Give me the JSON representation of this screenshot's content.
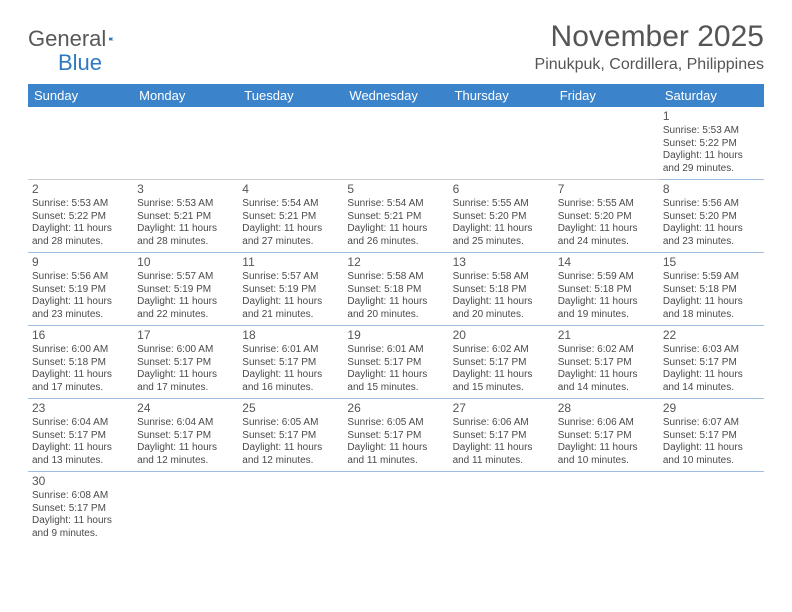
{
  "logo": {
    "text1": "General",
    "text2": "Blue"
  },
  "header": {
    "month_title": "November 2025",
    "location": "Pinukpuk, Cordillera, Philippines"
  },
  "colors": {
    "header_bg": "#3b84cc",
    "header_text": "#ffffff",
    "cell_border": "#9fbde0",
    "text": "#4a4a4a",
    "logo_gray": "#585858",
    "logo_blue": "#2f78c4"
  },
  "day_headers": [
    "Sunday",
    "Monday",
    "Tuesday",
    "Wednesday",
    "Thursday",
    "Friday",
    "Saturday"
  ],
  "weeks": [
    [
      null,
      null,
      null,
      null,
      null,
      null,
      {
        "n": "1",
        "sr": "Sunrise: 5:53 AM",
        "ss": "Sunset: 5:22 PM",
        "dl": "Daylight: 11 hours and 29 minutes."
      }
    ],
    [
      {
        "n": "2",
        "sr": "Sunrise: 5:53 AM",
        "ss": "Sunset: 5:22 PM",
        "dl": "Daylight: 11 hours and 28 minutes."
      },
      {
        "n": "3",
        "sr": "Sunrise: 5:53 AM",
        "ss": "Sunset: 5:21 PM",
        "dl": "Daylight: 11 hours and 28 minutes."
      },
      {
        "n": "4",
        "sr": "Sunrise: 5:54 AM",
        "ss": "Sunset: 5:21 PM",
        "dl": "Daylight: 11 hours and 27 minutes."
      },
      {
        "n": "5",
        "sr": "Sunrise: 5:54 AM",
        "ss": "Sunset: 5:21 PM",
        "dl": "Daylight: 11 hours and 26 minutes."
      },
      {
        "n": "6",
        "sr": "Sunrise: 5:55 AM",
        "ss": "Sunset: 5:20 PM",
        "dl": "Daylight: 11 hours and 25 minutes."
      },
      {
        "n": "7",
        "sr": "Sunrise: 5:55 AM",
        "ss": "Sunset: 5:20 PM",
        "dl": "Daylight: 11 hours and 24 minutes."
      },
      {
        "n": "8",
        "sr": "Sunrise: 5:56 AM",
        "ss": "Sunset: 5:20 PM",
        "dl": "Daylight: 11 hours and 23 minutes."
      }
    ],
    [
      {
        "n": "9",
        "sr": "Sunrise: 5:56 AM",
        "ss": "Sunset: 5:19 PM",
        "dl": "Daylight: 11 hours and 23 minutes."
      },
      {
        "n": "10",
        "sr": "Sunrise: 5:57 AM",
        "ss": "Sunset: 5:19 PM",
        "dl": "Daylight: 11 hours and 22 minutes."
      },
      {
        "n": "11",
        "sr": "Sunrise: 5:57 AM",
        "ss": "Sunset: 5:19 PM",
        "dl": "Daylight: 11 hours and 21 minutes."
      },
      {
        "n": "12",
        "sr": "Sunrise: 5:58 AM",
        "ss": "Sunset: 5:18 PM",
        "dl": "Daylight: 11 hours and 20 minutes."
      },
      {
        "n": "13",
        "sr": "Sunrise: 5:58 AM",
        "ss": "Sunset: 5:18 PM",
        "dl": "Daylight: 11 hours and 20 minutes."
      },
      {
        "n": "14",
        "sr": "Sunrise: 5:59 AM",
        "ss": "Sunset: 5:18 PM",
        "dl": "Daylight: 11 hours and 19 minutes."
      },
      {
        "n": "15",
        "sr": "Sunrise: 5:59 AM",
        "ss": "Sunset: 5:18 PM",
        "dl": "Daylight: 11 hours and 18 minutes."
      }
    ],
    [
      {
        "n": "16",
        "sr": "Sunrise: 6:00 AM",
        "ss": "Sunset: 5:18 PM",
        "dl": "Daylight: 11 hours and 17 minutes."
      },
      {
        "n": "17",
        "sr": "Sunrise: 6:00 AM",
        "ss": "Sunset: 5:17 PM",
        "dl": "Daylight: 11 hours and 17 minutes."
      },
      {
        "n": "18",
        "sr": "Sunrise: 6:01 AM",
        "ss": "Sunset: 5:17 PM",
        "dl": "Daylight: 11 hours and 16 minutes."
      },
      {
        "n": "19",
        "sr": "Sunrise: 6:01 AM",
        "ss": "Sunset: 5:17 PM",
        "dl": "Daylight: 11 hours and 15 minutes."
      },
      {
        "n": "20",
        "sr": "Sunrise: 6:02 AM",
        "ss": "Sunset: 5:17 PM",
        "dl": "Daylight: 11 hours and 15 minutes."
      },
      {
        "n": "21",
        "sr": "Sunrise: 6:02 AM",
        "ss": "Sunset: 5:17 PM",
        "dl": "Daylight: 11 hours and 14 minutes."
      },
      {
        "n": "22",
        "sr": "Sunrise: 6:03 AM",
        "ss": "Sunset: 5:17 PM",
        "dl": "Daylight: 11 hours and 14 minutes."
      }
    ],
    [
      {
        "n": "23",
        "sr": "Sunrise: 6:04 AM",
        "ss": "Sunset: 5:17 PM",
        "dl": "Daylight: 11 hours and 13 minutes."
      },
      {
        "n": "24",
        "sr": "Sunrise: 6:04 AM",
        "ss": "Sunset: 5:17 PM",
        "dl": "Daylight: 11 hours and 12 minutes."
      },
      {
        "n": "25",
        "sr": "Sunrise: 6:05 AM",
        "ss": "Sunset: 5:17 PM",
        "dl": "Daylight: 11 hours and 12 minutes."
      },
      {
        "n": "26",
        "sr": "Sunrise: 6:05 AM",
        "ss": "Sunset: 5:17 PM",
        "dl": "Daylight: 11 hours and 11 minutes."
      },
      {
        "n": "27",
        "sr": "Sunrise: 6:06 AM",
        "ss": "Sunset: 5:17 PM",
        "dl": "Daylight: 11 hours and 11 minutes."
      },
      {
        "n": "28",
        "sr": "Sunrise: 6:06 AM",
        "ss": "Sunset: 5:17 PM",
        "dl": "Daylight: 11 hours and 10 minutes."
      },
      {
        "n": "29",
        "sr": "Sunrise: 6:07 AM",
        "ss": "Sunset: 5:17 PM",
        "dl": "Daylight: 11 hours and 10 minutes."
      }
    ],
    [
      {
        "n": "30",
        "sr": "Sunrise: 6:08 AM",
        "ss": "Sunset: 5:17 PM",
        "dl": "Daylight: 11 hours and 9 minutes."
      },
      null,
      null,
      null,
      null,
      null,
      null
    ]
  ]
}
